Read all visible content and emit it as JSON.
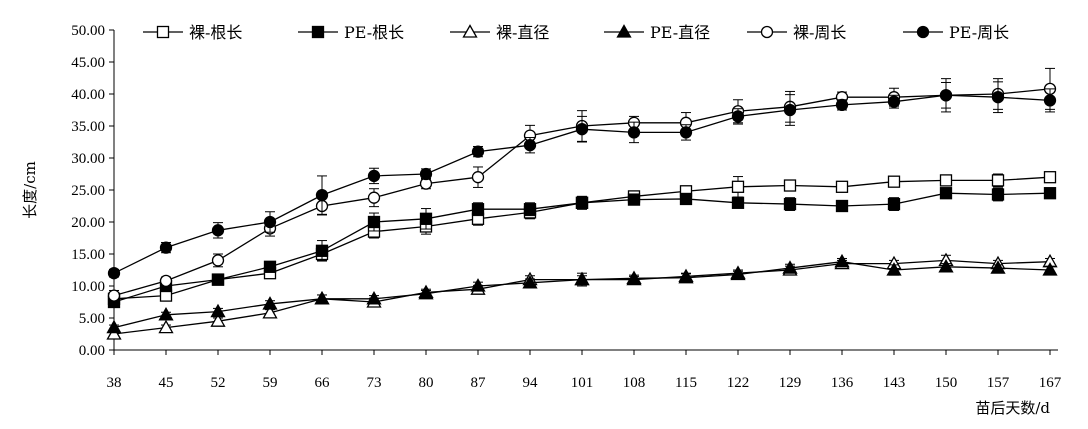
{
  "chart_data": {
    "type": "line",
    "title": "",
    "xlabel": "苗后天数/d",
    "ylabel": "长度/cm",
    "x": [
      38,
      45,
      52,
      59,
      66,
      73,
      80,
      87,
      94,
      101,
      108,
      115,
      122,
      129,
      136,
      143,
      150,
      157,
      167
    ],
    "x_tick_labels": [
      "38",
      "45",
      "52",
      "59",
      "66",
      "73",
      "80",
      "87",
      "94",
      "101",
      "108",
      "115",
      "122",
      "129",
      "136",
      "143",
      "150",
      "157",
      "167"
    ],
    "ylim": [
      0,
      50
    ],
    "y_tick_labels": [
      "0.00",
      "5.00",
      "10.00",
      "15.00",
      "20.00",
      "25.00",
      "30.00",
      "35.00",
      "40.00",
      "45.00",
      "50.00"
    ],
    "grid": false,
    "legend_position": "top",
    "series": [
      {
        "name": "裸-根长",
        "marker": "square-open",
        "values": [
          8.0,
          8.5,
          11.0,
          12.0,
          15.0,
          18.5,
          19.3,
          20.5,
          21.5,
          23.0,
          24.0,
          24.8,
          25.5,
          25.7,
          25.5,
          26.3,
          26.5,
          26.5,
          27.0
        ],
        "errors": [
          0.5,
          0.5,
          0.6,
          0.8,
          1.0,
          1.0,
          1.2,
          1.0,
          1.0,
          1.0,
          0.6,
          0.6,
          1.6,
          0.6,
          0.6,
          0.6,
          0.6,
          1.0,
          0.6
        ]
      },
      {
        "name": "PE-根长",
        "marker": "square-filled",
        "values": [
          7.5,
          10.0,
          11.0,
          13.0,
          15.5,
          20.0,
          20.5,
          22.0,
          22.0,
          23.0,
          23.5,
          23.6,
          23.0,
          22.8,
          22.5,
          22.8,
          24.5,
          24.3,
          24.5
        ],
        "errors": [
          0.5,
          0.5,
          0.6,
          0.6,
          1.6,
          1.4,
          1.6,
          1.0,
          1.0,
          1.0,
          0.6,
          0.6,
          0.6,
          1.0,
          0.8,
          1.0,
          0.8,
          1.0,
          0.8
        ]
      },
      {
        "name": "裸-直径",
        "marker": "triangle-open",
        "values": [
          2.5,
          3.5,
          4.5,
          5.8,
          8.0,
          7.5,
          9.0,
          9.5,
          11.0,
          11.0,
          11.0,
          11.5,
          12.0,
          12.5,
          13.5,
          13.5,
          14.0,
          13.5,
          13.8
        ],
        "errors": [
          0.4,
          0.4,
          0.5,
          0.5,
          0.6,
          0.6,
          0.5,
          0.6,
          0.6,
          1.0,
          0.5,
          0.5,
          0.5,
          0.6,
          0.5,
          0.5,
          0.8,
          0.5,
          0.5
        ]
      },
      {
        "name": "PE-直径",
        "marker": "triangle-filled",
        "values": [
          3.5,
          5.5,
          6.0,
          7.2,
          8.0,
          8.0,
          8.8,
          10.0,
          10.5,
          11.0,
          11.2,
          11.3,
          11.8,
          12.8,
          13.8,
          12.5,
          13.0,
          12.8,
          12.5
        ],
        "errors": [
          0.4,
          0.4,
          0.5,
          0.5,
          0.6,
          0.5,
          0.5,
          0.6,
          0.6,
          0.6,
          0.5,
          0.6,
          0.5,
          0.6,
          0.5,
          0.8,
          0.5,
          0.5,
          0.6
        ]
      },
      {
        "name": "裸-周长",
        "marker": "circle-open",
        "values": [
          8.5,
          10.8,
          14.0,
          19.0,
          22.5,
          23.8,
          26.0,
          27.0,
          33.5,
          35.0,
          35.5,
          35.5,
          37.3,
          38.0,
          39.5,
          39.5,
          39.8,
          40.0,
          40.8
        ],
        "errors": [
          0.8,
          0.6,
          1.0,
          1.2,
          1.4,
          1.4,
          0.8,
          1.6,
          1.6,
          2.4,
          1.0,
          1.6,
          1.8,
          2.4,
          0.8,
          1.4,
          2.6,
          2.4,
          3.2
        ]
      },
      {
        "name": "PE-周长",
        "marker": "circle-filled",
        "values": [
          12.0,
          16.0,
          18.7,
          20.0,
          24.2,
          27.2,
          27.5,
          31.0,
          32.0,
          34.5,
          34.0,
          34.0,
          36.5,
          37.5,
          38.3,
          38.8,
          39.8,
          39.5,
          39.0
        ],
        "errors": [
          0.6,
          0.8,
          1.2,
          1.6,
          3.0,
          1.2,
          0.8,
          0.8,
          1.2,
          2.0,
          1.6,
          1.2,
          1.2,
          2.4,
          0.8,
          1.0,
          2.0,
          2.4,
          1.8
        ]
      }
    ]
  }
}
